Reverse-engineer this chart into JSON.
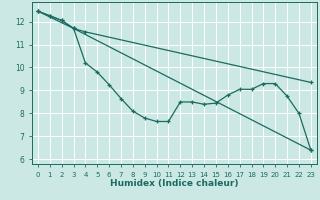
{
  "xlabel": "Humidex (Indice chaleur)",
  "background_color": "#cce8e4",
  "grid_color": "#ffffff",
  "line_color": "#1a6b60",
  "xlim": [
    -0.5,
    23.5
  ],
  "ylim": [
    5.8,
    12.85
  ],
  "yticks": [
    6,
    7,
    8,
    9,
    10,
    11,
    12
  ],
  "xticks": [
    0,
    1,
    2,
    3,
    4,
    5,
    6,
    7,
    8,
    9,
    10,
    11,
    12,
    13,
    14,
    15,
    16,
    17,
    18,
    19,
    20,
    21,
    22,
    23
  ],
  "line1_x": [
    0,
    1,
    2,
    3,
    4,
    5,
    6,
    7,
    8,
    9,
    10,
    11,
    12,
    13,
    14,
    15,
    16,
    17,
    18,
    19,
    20,
    21,
    22,
    23
  ],
  "line1_y": [
    12.45,
    12.25,
    12.05,
    11.7,
    10.2,
    9.8,
    9.25,
    8.65,
    8.1,
    7.8,
    7.65,
    7.65,
    8.5,
    8.5,
    8.4,
    8.45,
    8.8,
    9.05,
    9.05,
    9.3,
    9.3,
    8.75,
    8.0,
    6.4
  ],
  "line2_x": [
    0,
    1,
    2,
    3,
    23
  ],
  "line2_y": [
    12.45,
    12.25,
    12.05,
    11.7,
    6.4
  ],
  "line3_x": [
    0,
    3,
    4,
    23
  ],
  "line3_y": [
    12.45,
    11.7,
    11.55,
    9.35
  ]
}
